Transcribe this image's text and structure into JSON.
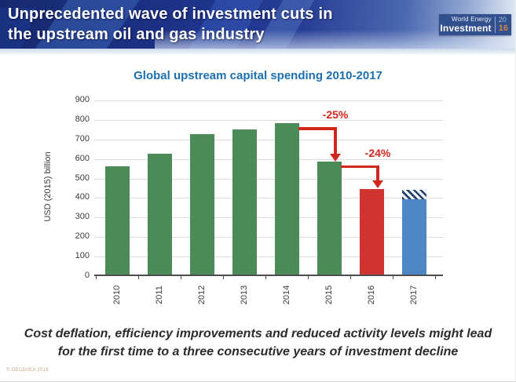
{
  "banner": {
    "title_line1": "Unprecedented wave of investment cuts in",
    "title_line2": "the upstream oil and gas industry",
    "logo": {
      "line1": "World Energy",
      "line2": "Investment",
      "year_top": "20",
      "year_bottom": "16"
    }
  },
  "chart_data": {
    "type": "bar",
    "title": "Global upstream capital spending 2010-2017",
    "xlabel": "",
    "ylabel": "USD (2015) billion",
    "ylim": [
      0,
      900
    ],
    "ytick_step": 100,
    "grid": true,
    "categories": [
      "2010",
      "2011",
      "2012",
      "2013",
      "2014",
      "2015",
      "2016",
      "2017"
    ],
    "bars": [
      {
        "category": "2010",
        "value": 555,
        "color": "green"
      },
      {
        "category": "2011",
        "value": 620,
        "color": "green"
      },
      {
        "category": "2012",
        "value": 720,
        "color": "green"
      },
      {
        "category": "2013",
        "value": 745,
        "color": "green"
      },
      {
        "category": "2014",
        "value": 775,
        "color": "green"
      },
      {
        "category": "2015",
        "value": 580,
        "color": "green"
      },
      {
        "category": "2016",
        "value": 440,
        "color": "red"
      },
      {
        "category": "2017",
        "value": 395,
        "hatch_to": 440,
        "color": "blue"
      }
    ],
    "colors": {
      "green": "#4a8b57",
      "red": "#cf3430",
      "blue": "#4e86c6",
      "hatch": "#24416b",
      "annotation": "#d0281e",
      "title": "#1e6fb0",
      "gridline": "#dcdcdc",
      "axis": "#4d4d4d"
    },
    "annotations": [
      {
        "label": "-25%",
        "from": "2014",
        "to": "2015"
      },
      {
        "label": "-24%",
        "from": "2015",
        "to": "2016"
      }
    ]
  },
  "footer": {
    "line1": "Cost deflation, efficiency improvements and reduced activity levels might lead",
    "line2": "for the first time to a three consecutive years of investment decline",
    "copyright": "© OECD/IEA 2016"
  }
}
